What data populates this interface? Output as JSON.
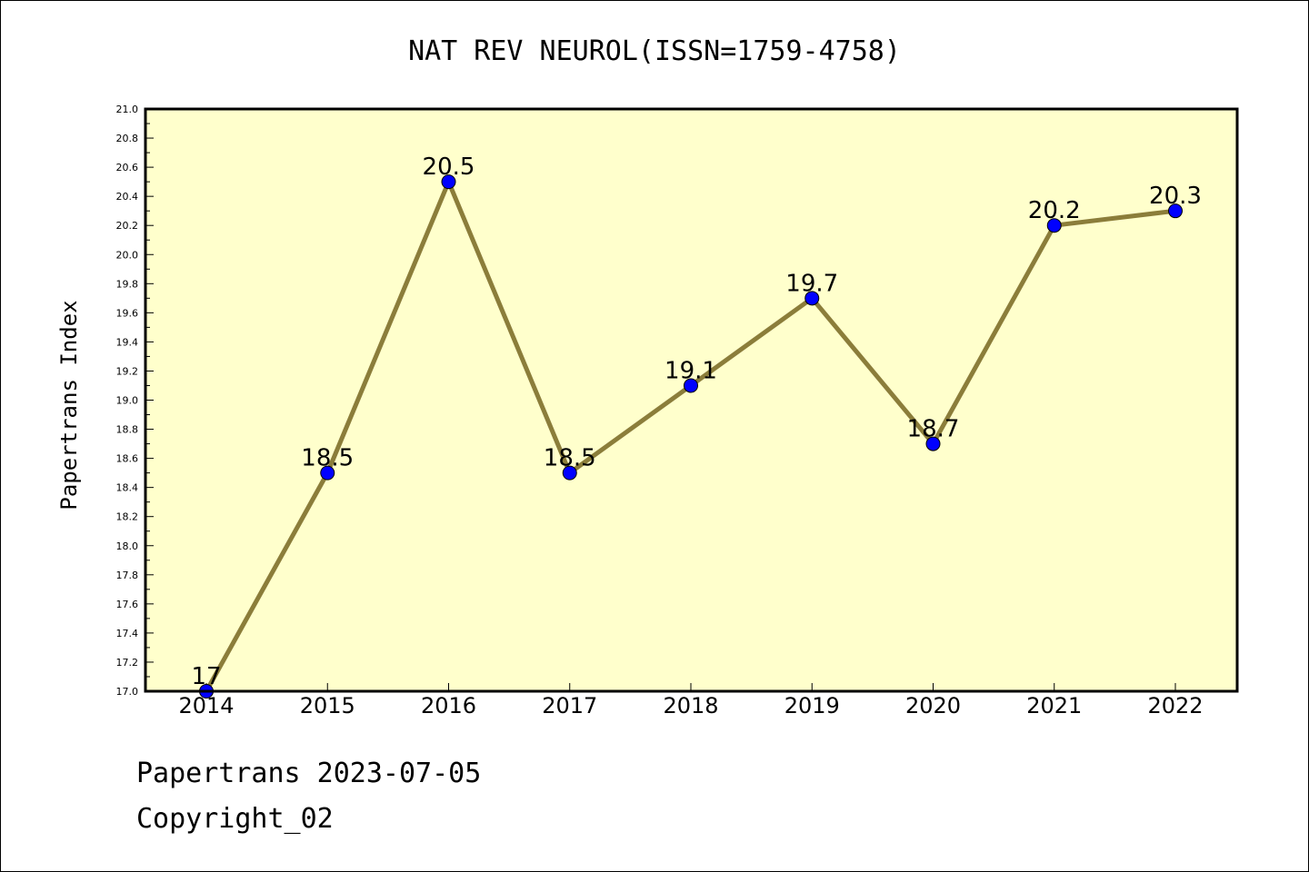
{
  "chart_data": {
    "type": "line",
    "title": "NAT REV NEUROL(ISSN=1759-4758)",
    "xlabel": "",
    "ylabel": "Papertrans Index",
    "categories": [
      "2014",
      "2015",
      "2016",
      "2017",
      "2018",
      "2019",
      "2020",
      "2021",
      "2022"
    ],
    "series": [
      {
        "values": [
          17,
          18.5,
          20.5,
          18.5,
          19.1,
          19.7,
          18.7,
          20.2,
          20.3
        ],
        "labels": [
          "17",
          "18.5",
          "20.5",
          "18.5",
          "19.1",
          "19.7",
          "18.7",
          "20.2",
          "20.3"
        ]
      }
    ],
    "ylim": [
      17.0,
      21.0
    ],
    "yticks": [
      "17.0",
      "17.2",
      "17.4",
      "17.6",
      "17.8",
      "18.0",
      "18.2",
      "18.4",
      "18.6",
      "18.8",
      "19.0",
      "19.2",
      "19.4",
      "19.6",
      "19.8",
      "20.0",
      "20.2",
      "20.4",
      "20.6",
      "20.8",
      "21.0"
    ],
    "grid": false,
    "legend": "none",
    "colors": {
      "plot_background": "#ffffcc",
      "line": "#8b7d3a",
      "marker": "#0000ff"
    }
  },
  "footer": {
    "line1": "Papertrans 2023-07-05",
    "line2": "Copyright_02"
  }
}
